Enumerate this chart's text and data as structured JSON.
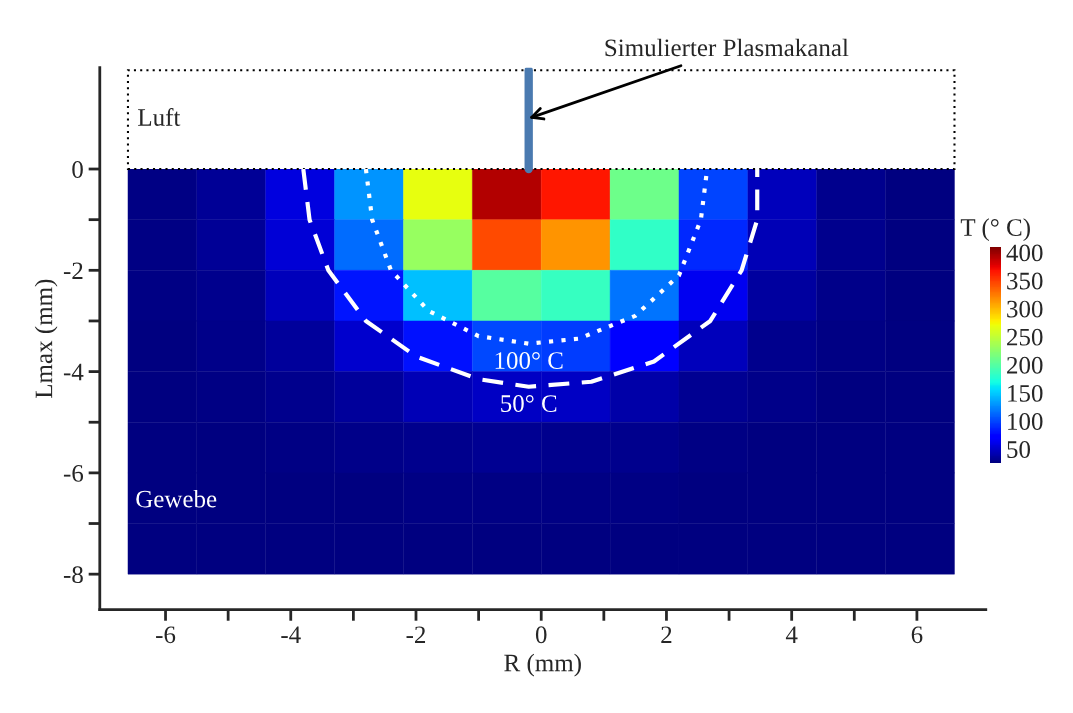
{
  "chart_data": {
    "type": "heatmap",
    "xlabel": "R (mm)",
    "ylabel": "Lmax (mm)",
    "clabel": "T (° C)",
    "x": [
      -6.05,
      -4.95,
      -3.85,
      -2.75,
      -1.65,
      -0.55,
      0.55,
      1.65,
      2.75,
      3.85,
      4.95,
      6.05
    ],
    "y": [
      -0.5,
      -1.5,
      -2.5,
      -3.5,
      -4.5,
      -5.5,
      -6.5,
      -7.5
    ],
    "cells": [
      [
        28,
        34,
        58,
        130,
        268,
        393,
        365,
        210,
        99,
        46,
        30,
        26
      ],
      [
        28,
        33,
        55,
        115,
        230,
        345,
        315,
        182,
        89,
        44,
        30,
        26
      ],
      [
        27,
        31,
        45,
        82,
        146,
        200,
        185,
        118,
        64,
        37,
        29,
        26
      ],
      [
        26,
        29,
        35,
        52,
        80,
        101,
        96,
        68,
        45,
        31,
        28,
        25
      ],
      [
        25,
        27,
        30,
        35,
        44,
        49,
        48,
        40,
        32,
        29,
        26,
        25
      ],
      [
        25,
        25,
        27,
        29,
        30,
        32,
        31,
        30,
        28,
        26,
        25,
        25
      ],
      [
        25,
        25,
        25,
        26,
        27,
        27,
        27,
        27,
        26,
        25,
        25,
        25
      ],
      [
        25,
        25,
        25,
        25,
        25,
        25,
        25,
        25,
        25,
        25,
        25,
        25
      ]
    ],
    "clim": [
      25,
      410
    ],
    "cticks": [
      50,
      100,
      150,
      200,
      250,
      300,
      350,
      400
    ],
    "series": [
      {
        "type": "line",
        "color": "#ffffff",
        "line_style": "dotted",
        "x": [
          -2.8,
          -2.7,
          -2.4,
          -1.8,
          -1.0,
          -0.2,
          0.6,
          1.5,
          2.2,
          2.55,
          2.65
        ],
        "values": [
          0,
          -1,
          -2,
          -2.8,
          -3.3,
          -3.45,
          -3.35,
          -2.9,
          -2.1,
          -1,
          0
        ]
      },
      {
        "type": "line",
        "color": "#ffffff",
        "line_style": "dashed",
        "x": [
          -3.8,
          -3.7,
          -3.4,
          -2.8,
          -2.0,
          -1.0,
          -0.2,
          0.8,
          1.8,
          2.7,
          3.2,
          3.45,
          3.45
        ],
        "values": [
          0,
          -1,
          -2,
          -3,
          -3.7,
          -4.15,
          -4.3,
          -4.2,
          -3.8,
          -3,
          -2,
          -1,
          0
        ]
      },
      {
        "type": "line",
        "color": "#4a7ab0",
        "line_style": "solid",
        "x": [
          -0.2,
          -0.2
        ],
        "values": [
          0,
          1.95
        ]
      }
    ],
    "bands": [
      {
        "axis": "y",
        "from": 0,
        "to": 1.95,
        "label": "Luft",
        "color": "#ffffff"
      }
    ],
    "annotations": [
      {
        "text": "Simulierter Plasmakanal",
        "x": -0.2,
        "y": 1.0
      },
      "100° C",
      "50° C",
      "Gewebe"
    ],
    "xlim": [
      -7.05,
      7.1
    ],
    "ylim": [
      -8.7,
      2.0
    ],
    "xticks": [
      -6,
      {
        "value": -5,
        "label": null
      },
      -4,
      {
        "value": -3,
        "label": null
      },
      -2,
      {
        "value": -1,
        "label": null
      },
      0,
      {
        "value": 1,
        "label": null
      },
      2,
      {
        "value": 3,
        "label": null
      },
      4,
      {
        "value": 5,
        "label": null
      },
      6
    ],
    "yticks": [
      0,
      {
        "value": -1,
        "label": null
      },
      -2,
      {
        "value": -3,
        "label": null
      },
      -4,
      {
        "value": -5,
        "label": null
      },
      -6,
      {
        "value": -7,
        "label": null
      },
      -8
    ],
    "grid": false
  }
}
